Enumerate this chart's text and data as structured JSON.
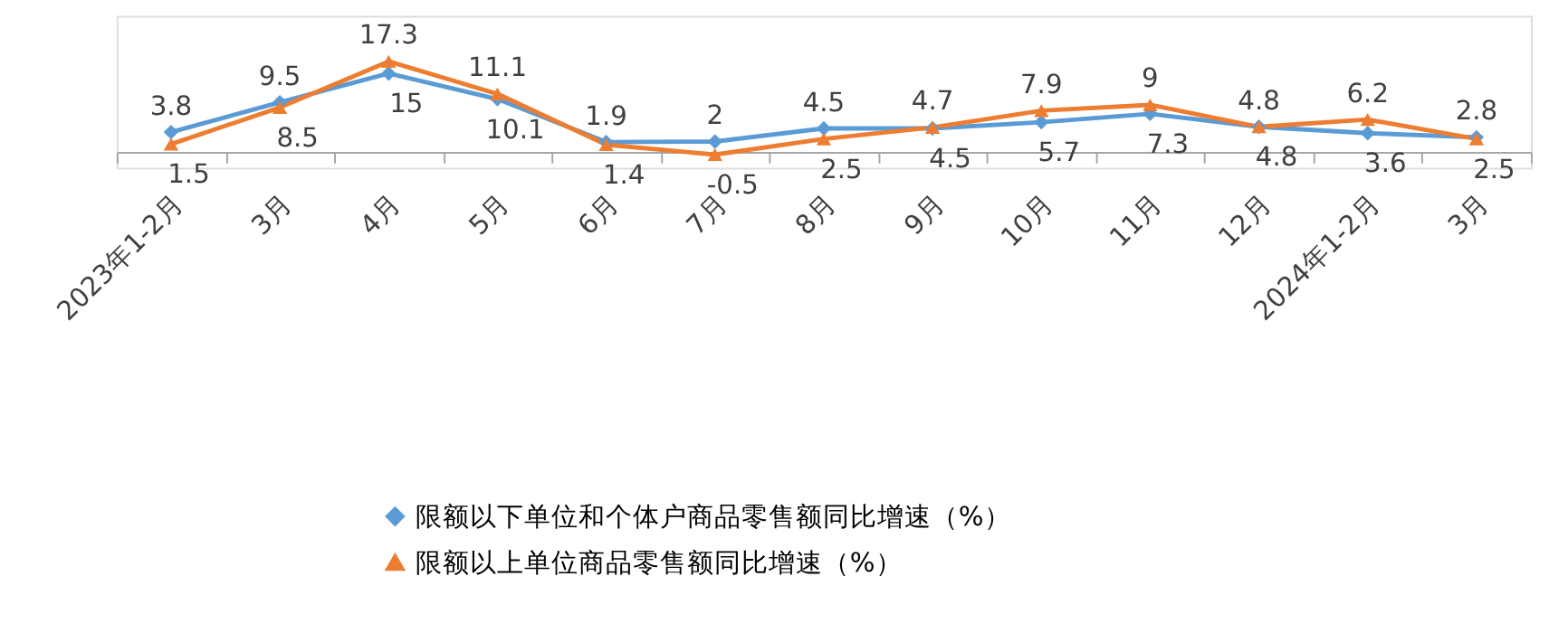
{
  "chart_data": {
    "type": "line",
    "categories": [
      "2023年1-2月",
      "3月",
      "4月",
      "5月",
      "6月",
      "7月",
      "8月",
      "9月",
      "10月",
      "11月",
      "12月",
      "2024年1-2月",
      "3月"
    ],
    "series": [
      {
        "name": "限额以下单位和个体户商品零售额同比增速（%）",
        "color": "#5b9bd5",
        "marker": "diamond",
        "values": [
          3.8,
          9.5,
          15,
          10.1,
          1.9,
          2,
          4.5,
          4.5,
          5.7,
          7.3,
          4.8,
          3.6,
          2.8
        ]
      },
      {
        "name": "限额以上单位商品零售额同比增速（%）",
        "color": "#ed7d31",
        "marker": "triangle",
        "values": [
          1.5,
          8.5,
          17.3,
          11.1,
          1.4,
          -0.5,
          2.5,
          4.7,
          7.9,
          9,
          4.8,
          6.2,
          2.5
        ]
      }
    ],
    "ylim": [
      -3,
      26
    ],
    "data_labels": true,
    "legend": "bottom",
    "grid": false,
    "line_style": "solid"
  }
}
